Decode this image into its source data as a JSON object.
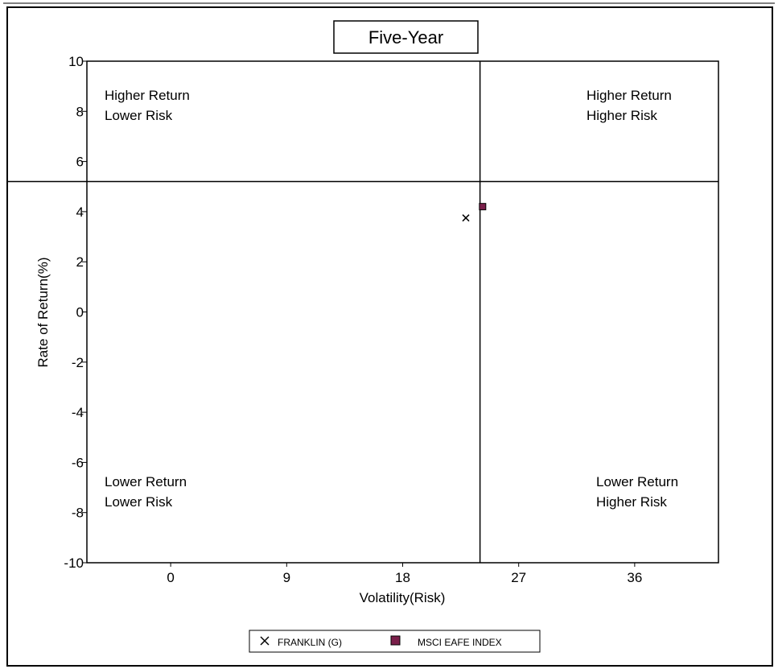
{
  "chart_data": {
    "type": "scatter",
    "title": "Five-Year",
    "xlabel": "Volatility(Risk)",
    "ylabel": "Rate of Return(%)",
    "xlim": [
      -6.5,
      42.5
    ],
    "ylim": [
      -10,
      10
    ],
    "x_ticks": [
      "0",
      "9",
      "18",
      "27",
      "36"
    ],
    "y_ticks": [
      "10",
      "8",
      "6",
      "4",
      "2",
      "0",
      "-2",
      "-4",
      "-6",
      "-8",
      "-10"
    ],
    "reference_lines": {
      "x": 24.0,
      "y": 5.2
    },
    "quadrants": {
      "top_left": [
        "Higher Return",
        "Lower Risk"
      ],
      "top_right": [
        "Higher Return",
        "Higher Risk"
      ],
      "bottom_left": [
        "Lower Return",
        "Lower Risk"
      ],
      "bottom_right": [
        "Lower Return",
        "Higher Risk"
      ]
    },
    "series": [
      {
        "name": "FRANKLIN (G)",
        "marker": "x",
        "color": "#000000",
        "x": [
          22.9
        ],
        "y": [
          3.75
        ]
      },
      {
        "name": "MSCI EAFE INDEX",
        "marker": "square",
        "color": "#7a1f4a",
        "x": [
          24.2
        ],
        "y": [
          4.2
        ]
      }
    ],
    "grid": false,
    "legend_position": "bottom-center"
  }
}
